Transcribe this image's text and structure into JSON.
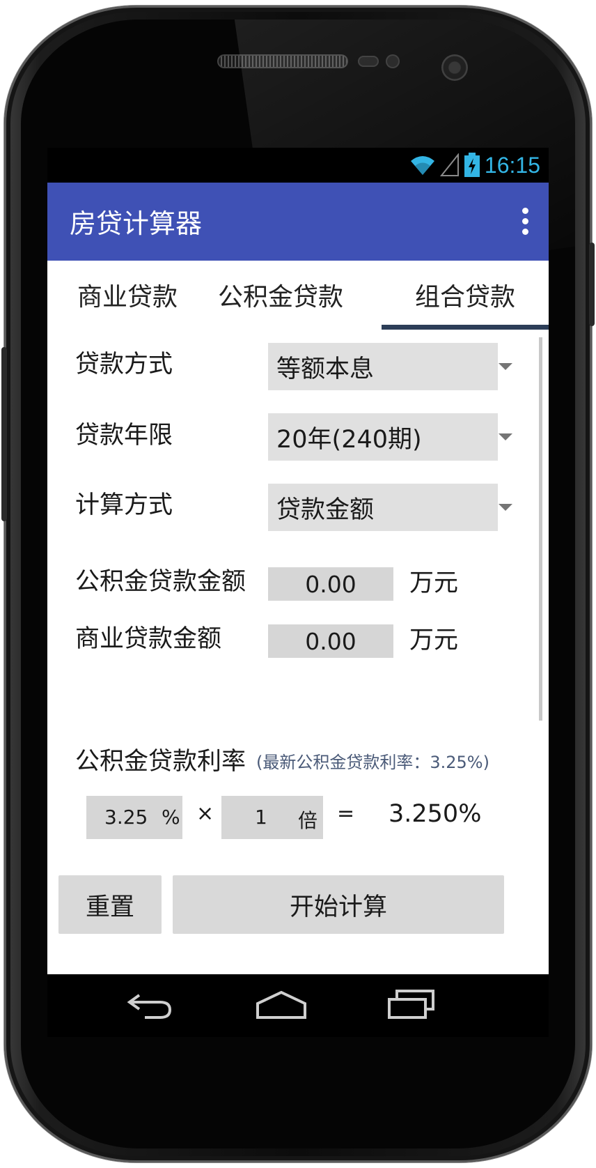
{
  "status_bar": {
    "time": "16:15",
    "icons": [
      "wifi-icon",
      "signal-icon",
      "battery-charging-icon"
    ],
    "time_color": "#33b5e5"
  },
  "app_bar": {
    "title": "房贷计算器",
    "color": "#3f51b5",
    "overflow_icon": "more-vert-icon"
  },
  "tabs": [
    {
      "label": "商业贷款",
      "selected": false
    },
    {
      "label": "公积金贷款",
      "selected": false
    },
    {
      "label": "组合贷款",
      "selected": true
    }
  ],
  "form": {
    "loan_method": {
      "label": "贷款方式",
      "value": "等额本息"
    },
    "loan_term": {
      "label": "贷款年限",
      "value": "20年(240期)"
    },
    "calc_method": {
      "label": "计算方式",
      "value": "贷款金额"
    },
    "fund_amount": {
      "label": "公积金贷款金额",
      "value": "0.00",
      "unit": "万元"
    },
    "commercial_amount": {
      "label": "商业贷款金额",
      "value": "0.00",
      "unit": "万元"
    }
  },
  "rate": {
    "title": "公积金贷款利率",
    "hint": "(最新公积金贷款利率：3.25%)",
    "base_value": "3.25",
    "percent_sign": "%",
    "times_sign": "×",
    "multiplier": "1",
    "multiplier_unit": "倍",
    "equals_sign": "=",
    "result": "3.250%"
  },
  "buttons": {
    "reset": "重置",
    "calculate": "开始计算"
  },
  "nav_bar": {
    "icons": [
      "back-icon",
      "home-icon",
      "recent-apps-icon"
    ]
  }
}
